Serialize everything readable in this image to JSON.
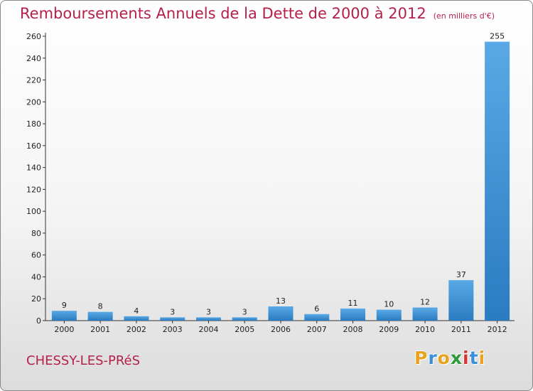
{
  "page": {
    "title": "Remboursements Annuels de la Dette de 2000 à 2012",
    "unit": "(en milliers d'€)",
    "commune": "CHESSY-LES-PRéS",
    "logo": "Proxiti"
  },
  "colors": {
    "title": "#b5204a",
    "bar_top": "#5aa9e6",
    "bar_bottom": "#2a7bc0"
  },
  "chart_data": {
    "type": "bar",
    "title": "Remboursements Annuels de la Dette de 2000 à 2012",
    "ylabel": "en milliers d'€",
    "xlabel": "",
    "categories": [
      "2000",
      "2001",
      "2002",
      "2003",
      "2004",
      "2005",
      "2006",
      "2007",
      "2008",
      "2009",
      "2010",
      "2011",
      "2012"
    ],
    "values": [
      9,
      8,
      4,
      3,
      3,
      3,
      13,
      6,
      11,
      10,
      12,
      37,
      255
    ],
    "ylim": [
      0,
      260
    ],
    "yticks": [
      0,
      20,
      40,
      60,
      80,
      100,
      120,
      140,
      160,
      180,
      200,
      220,
      240,
      260
    ],
    "grid": false
  }
}
